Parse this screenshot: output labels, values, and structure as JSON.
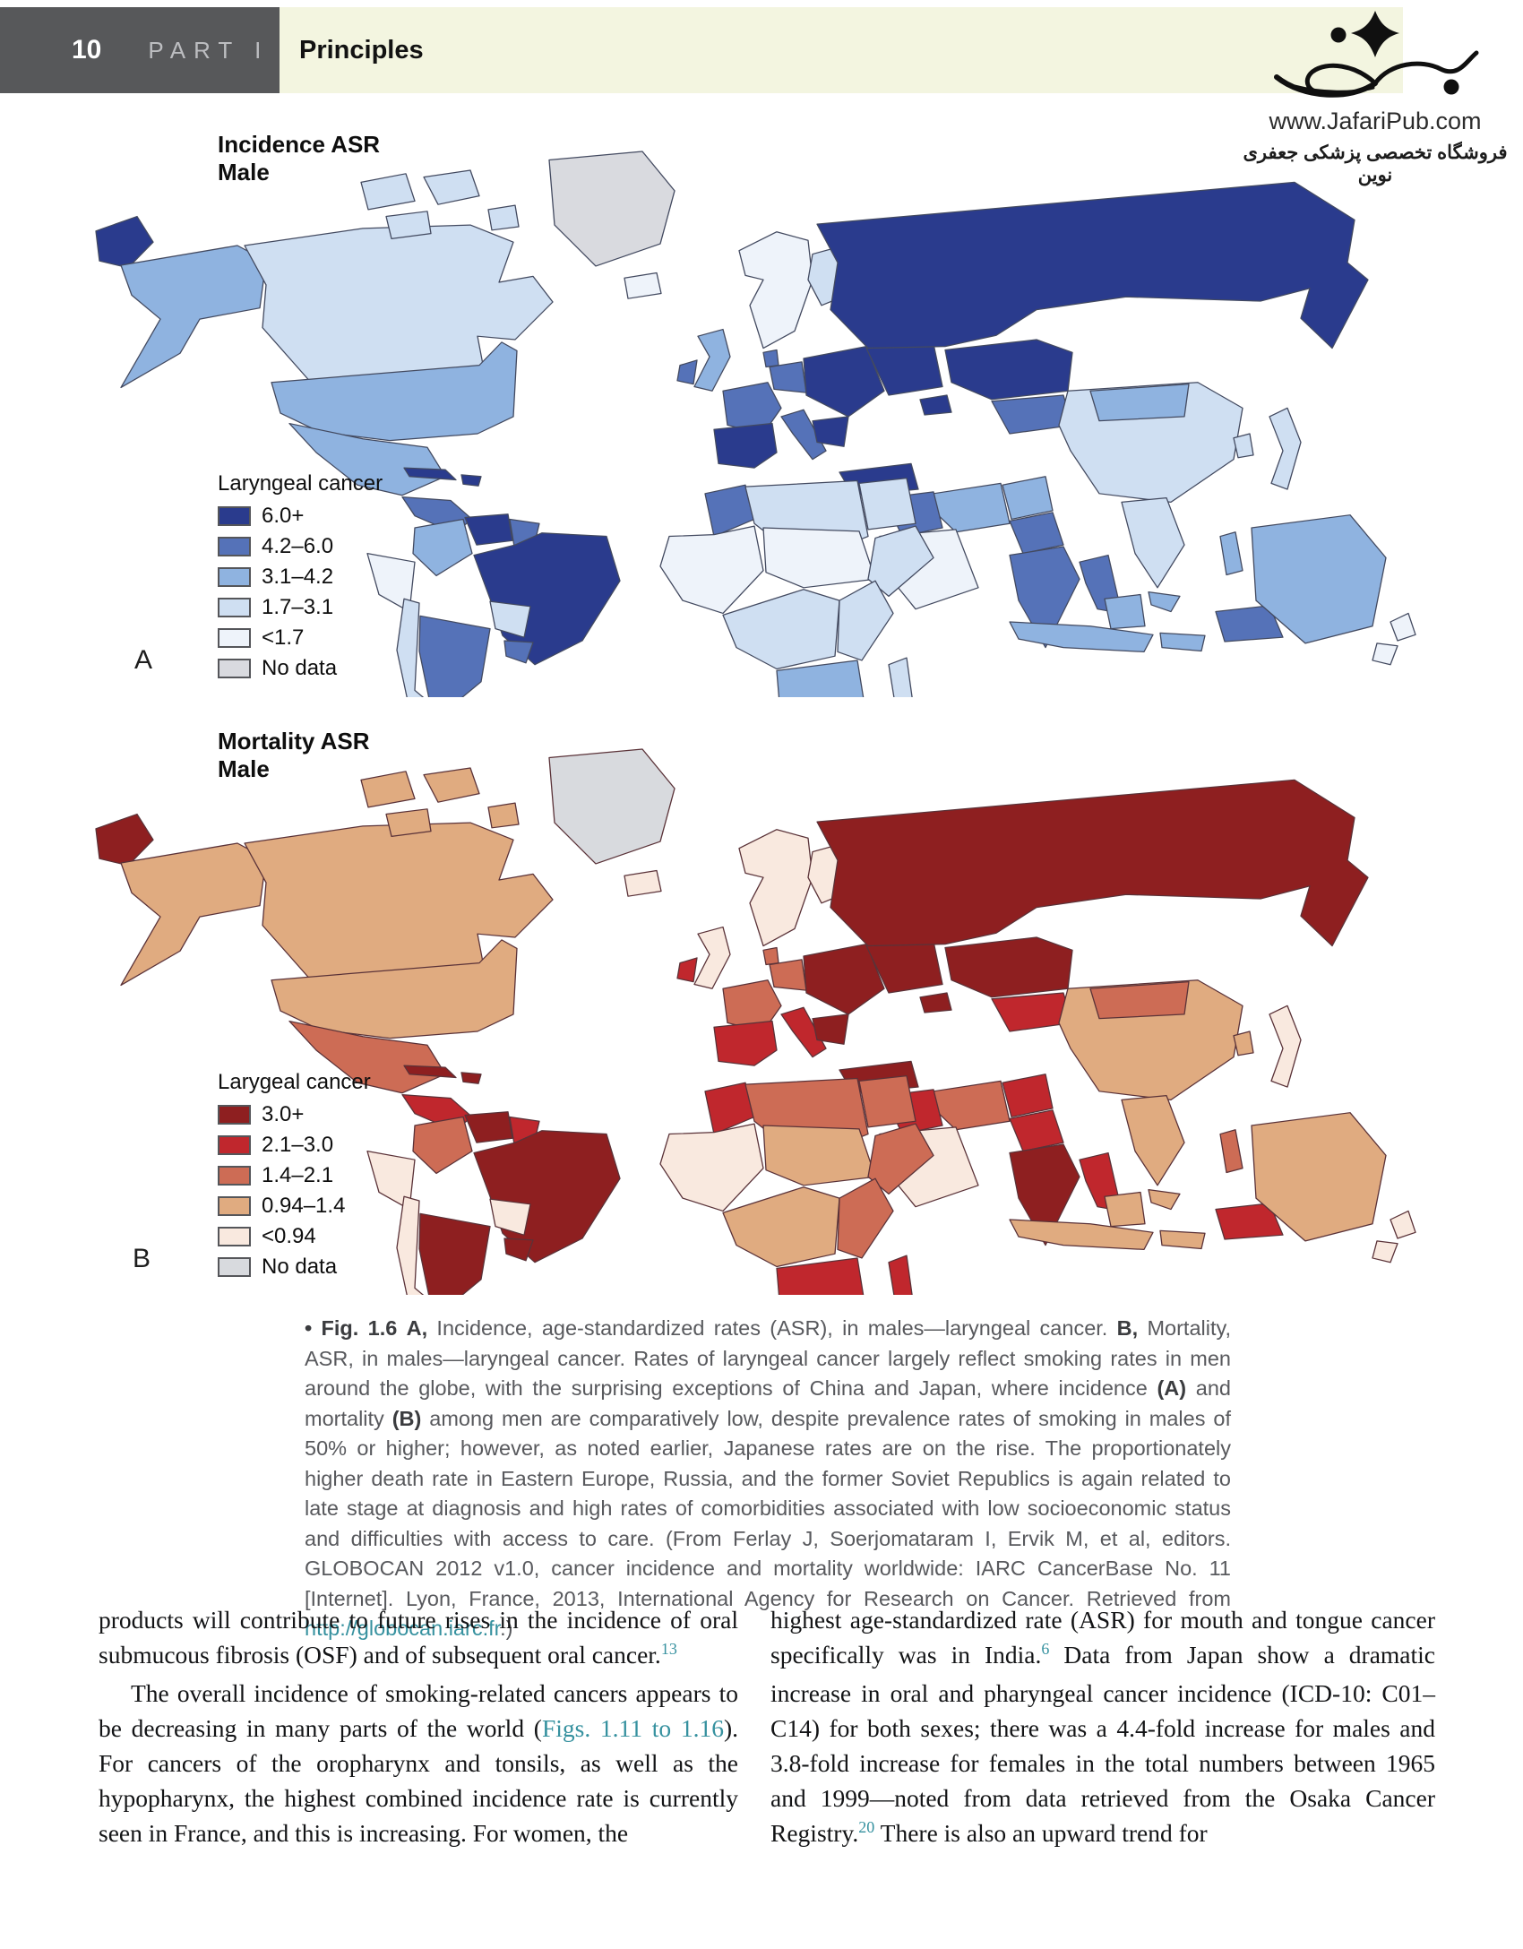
{
  "header": {
    "page_number": "10",
    "part_label": "PART I",
    "section_title": "Principles"
  },
  "branding": {
    "site_url": "www.JafariPub.com",
    "store_name_fa": "فروشگاه تخصصی پزشکی جعفری نوین",
    "logo": "jafaripub-calligraphy-logo"
  },
  "figure": {
    "panel_a": {
      "letter": "A",
      "title": "Incidence ASR",
      "subtitle": "Male",
      "legend_title": "Laryngeal cancer"
    },
    "panel_b": {
      "letter": "B",
      "title": "Mortality ASR",
      "subtitle": "Male",
      "legend_title": "Larygeal cancer"
    },
    "caption_segments": [
      {
        "t": "• ",
        "b": 1
      },
      {
        "t": "Fig. 1.6",
        "b": 1
      },
      {
        "t": "  "
      },
      {
        "t": "A,",
        "b": 1
      },
      {
        "t": " Incidence, age-standardized rates (ASR), in males—laryngeal cancer. "
      },
      {
        "t": "B,",
        "b": 1
      },
      {
        "t": " Mortality, ASR, in males—laryngeal cancer. Rates of laryngeal cancer largely reflect smoking rates in men around the globe, with the surprising exceptions of China and Japan, where incidence "
      },
      {
        "t": "(A)",
        "b": 1
      },
      {
        "t": " and mortality "
      },
      {
        "t": "(B)",
        "b": 1
      },
      {
        "t": " among men are comparatively low, despite prevalence rates of smoking in males of 50% or higher; however, as noted earlier, Japanese rates are on the rise. The proportionately higher death rate in Eastern Europe, Russia, and the former Soviet Republics is again related to late stage at diagnosis and high rates of comorbidities associated with low socioeconomic status and difficulties with access to care. (From Ferlay J, Soerjomataram I, Ervik M, et al, editors. GLOBOCAN 2012 v1.0, cancer incidence and mortality worldwide: IARC CancerBase No. 11 [Internet]. Lyon, France, 2013, International Agency for Research on Cancer. Retrieved from "
      },
      {
        "t": "http://globocan.iarc.fr",
        "link": 1
      },
      {
        "t": ".)"
      }
    ]
  },
  "chart_data": [
    {
      "type": "choropleth_map",
      "title": "Incidence ASR Male",
      "metric": "Laryngeal cancer, age-standardized incidence rate, males",
      "legend_title": "Laryngeal cancer",
      "stroke": "#434a60",
      "bins": [
        {
          "label": "6.0+",
          "color": "#2a3b8d"
        },
        {
          "label": "4.2–6.0",
          "color": "#5572b8"
        },
        {
          "label": "3.1–4.2",
          "color": "#8fb3e0"
        },
        {
          "label": "1.7–3.1",
          "color": "#cfdff2"
        },
        {
          "label": "<1.7",
          "color": "#eef3fa"
        },
        {
          "label": "No data",
          "color": "#d9dadf"
        }
      ],
      "regions": {
        "chukotka": 0,
        "alaska": 2,
        "canada": 3,
        "arctic_islands": 3,
        "greenland": 5,
        "iceland": 4,
        "usa": 2,
        "mexico": 2,
        "camerica": 1,
        "cuba": 0,
        "hispaniola": 0,
        "colombia": 2,
        "venezuela": 0,
        "guyanas": 1,
        "peru": 4,
        "brazil": 0,
        "bolivia": 3,
        "paraguay": 1,
        "chile": 3,
        "argentina": 1,
        "uk": 2,
        "ireland": 1,
        "scandinavia": 4,
        "finland": 3,
        "denmark": 1,
        "france": 1,
        "iberia": 0,
        "germany": 1,
        "italy": 1,
        "easteurope": 0,
        "balkans": 0,
        "ukraine_region": 0,
        "turkey": 0,
        "caucasus": 0,
        "russia": 0,
        "kazakh": 0,
        "centralasia": 1,
        "iran": 2,
        "iraq_levant": 1,
        "saudi": 4,
        "afghan": 2,
        "pakistan": 1,
        "morocco": 1,
        "algeria_libya": 3,
        "egypt": 3,
        "westafrica": 4,
        "sahel_sudan": 4,
        "horn": 3,
        "centralafrica": 3,
        "eastafrica": 3,
        "southernafrica": 2,
        "madagascar": 3,
        "india": 1,
        "bangladesh_myanmar": 1,
        "china": 3,
        "mongolia": 2,
        "sea_indochina": 3,
        "malaysia": 2,
        "korea": 3,
        "japan": 3,
        "philippines": 2,
        "indonesia": 2,
        "papua": 1,
        "australia": 2,
        "nz": 4
      }
    },
    {
      "type": "choropleth_map",
      "title": "Mortality ASR Male",
      "metric": "Laryngeal cancer, age-standardized mortality rate, males",
      "legend_title": "Larygeal cancer",
      "stroke": "#5a3238",
      "bins": [
        {
          "label": "3.0+",
          "color": "#8e1f20"
        },
        {
          "label": "2.1–3.0",
          "color": "#c0272d"
        },
        {
          "label": "1.4–2.1",
          "color": "#cd6c55"
        },
        {
          "label": "0.94–1.4",
          "color": "#e0ab80"
        },
        {
          "label": "<0.94",
          "color": "#f9e9df"
        },
        {
          "label": "No data",
          "color": "#d8dade"
        }
      ],
      "regions": {
        "chukotka": 0,
        "alaska": 3,
        "canada": 3,
        "arctic_islands": 3,
        "greenland": 5,
        "iceland": 4,
        "usa": 3,
        "mexico": 2,
        "camerica": 1,
        "cuba": 0,
        "hispaniola": 0,
        "colombia": 2,
        "venezuela": 0,
        "guyanas": 1,
        "peru": 4,
        "brazil": 0,
        "bolivia": 4,
        "paraguay": 0,
        "chile": 4,
        "argentina": 0,
        "uk": 4,
        "ireland": 1,
        "scandinavia": 4,
        "finland": 4,
        "denmark": 2,
        "france": 2,
        "iberia": 1,
        "germany": 2,
        "italy": 1,
        "easteurope": 0,
        "balkans": 0,
        "ukraine_region": 0,
        "turkey": 0,
        "caucasus": 0,
        "russia": 0,
        "kazakh": 0,
        "centralasia": 1,
        "iran": 2,
        "iraq_levant": 1,
        "saudi": 4,
        "afghan": 1,
        "pakistan": 1,
        "morocco": 1,
        "algeria_libya": 2,
        "egypt": 2,
        "westafrica": 4,
        "sahel_sudan": 3,
        "horn": 2,
        "centralafrica": 3,
        "eastafrica": 2,
        "southernafrica": 1,
        "madagascar": 1,
        "india": 0,
        "bangladesh_myanmar": 1,
        "china": 3,
        "mongolia": 2,
        "sea_indochina": 3,
        "malaysia": 3,
        "korea": 3,
        "japan": 4,
        "philippines": 2,
        "indonesia": 3,
        "papua": 1,
        "australia": 3,
        "nz": 4
      }
    }
  ],
  "body": {
    "left_paragraphs": [
      {
        "indent": false,
        "segments": [
          {
            "t": "products will contribute to future rises in the incidence of oral submucous fibrosis (OSF) and of subsequent oral cancer."
          },
          {
            "t": "13",
            "sup": 1,
            "link": 1
          }
        ]
      },
      {
        "indent": true,
        "segments": [
          {
            "t": "The overall incidence of smoking-related cancers appears to be decreasing in many parts of the world ("
          },
          {
            "t": "Figs. 1.11 to 1.16",
            "link": 1
          },
          {
            "t": "). For cancers of the oropharynx and tonsils, as well as the hypopharynx, the highest combined incidence rate is currently seen in France, and this is increasing. For women, the"
          }
        ]
      }
    ],
    "right_paragraphs": [
      {
        "indent": false,
        "segments": [
          {
            "t": "highest age-standardized rate (ASR) for mouth and tongue cancer specifically was in India."
          },
          {
            "t": "6",
            "sup": 1,
            "link": 1
          },
          {
            "t": " Data from Japan show a dramatic increase in oral and pharyngeal cancer incidence (ICD-10: C01–C14) for both sexes; there was a 4.4-fold increase for males and 3.8-fold increase for females in the total numbers between 1965 and 1999—noted from data retrieved from the Osaka Cancer Registry."
          },
          {
            "t": "20",
            "sup": 1,
            "link": 1
          },
          {
            "t": " There is also an upward trend for"
          }
        ]
      }
    ]
  }
}
